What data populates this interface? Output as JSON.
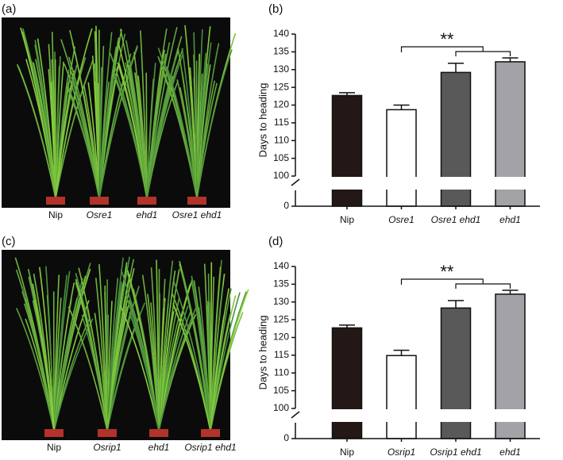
{
  "photos": [
    {
      "panel_label": "(a)",
      "labels": [
        "Nip",
        "Osre1",
        "ehd1",
        "Osre1 ehd1"
      ],
      "italic": [
        false,
        true,
        true,
        true
      ]
    },
    {
      "panel_label": "(c)",
      "labels": [
        "Nip",
        "Osrip1",
        "ehd1",
        "Osrip1 ehd1"
      ],
      "italic": [
        false,
        true,
        true,
        true
      ]
    }
  ],
  "chart_data": [
    {
      "type": "bar",
      "panel_label": "(b)",
      "ylabel": "Days to heading",
      "categories": [
        "Nip",
        "Osre1",
        "Osre1 ehd1",
        "ehd1"
      ],
      "italic": [
        false,
        true,
        true,
        true
      ],
      "values": [
        122.7,
        118.7,
        129.2,
        132.2
      ],
      "errors": [
        0.8,
        1.3,
        2.6,
        1.1
      ],
      "colors": [
        "#231815",
        "#ffffff",
        "#595959",
        "#a3a2a6"
      ],
      "ylim": [
        0,
        140
      ],
      "ybreak": [
        4,
        100
      ],
      "yticks": [
        0,
        100,
        105,
        110,
        115,
        120,
        125,
        130,
        135,
        140
      ],
      "annotation": "**"
    },
    {
      "type": "bar",
      "panel_label": "(d)",
      "ylabel": "Days to heading",
      "categories": [
        "Nip",
        "Osrip1",
        "Osrip1 ehd1",
        "ehd1"
      ],
      "italic": [
        false,
        true,
        true,
        true
      ],
      "values": [
        122.7,
        114.9,
        128.3,
        132.2
      ],
      "errors": [
        0.8,
        1.5,
        2.1,
        1.1
      ],
      "colors": [
        "#231815",
        "#ffffff",
        "#595959",
        "#a3a2a6"
      ],
      "ylim": [
        0,
        140
      ],
      "ybreak": [
        4,
        100
      ],
      "yticks": [
        0,
        100,
        105,
        110,
        115,
        120,
        125,
        130,
        135,
        140
      ],
      "annotation": "**"
    }
  ]
}
